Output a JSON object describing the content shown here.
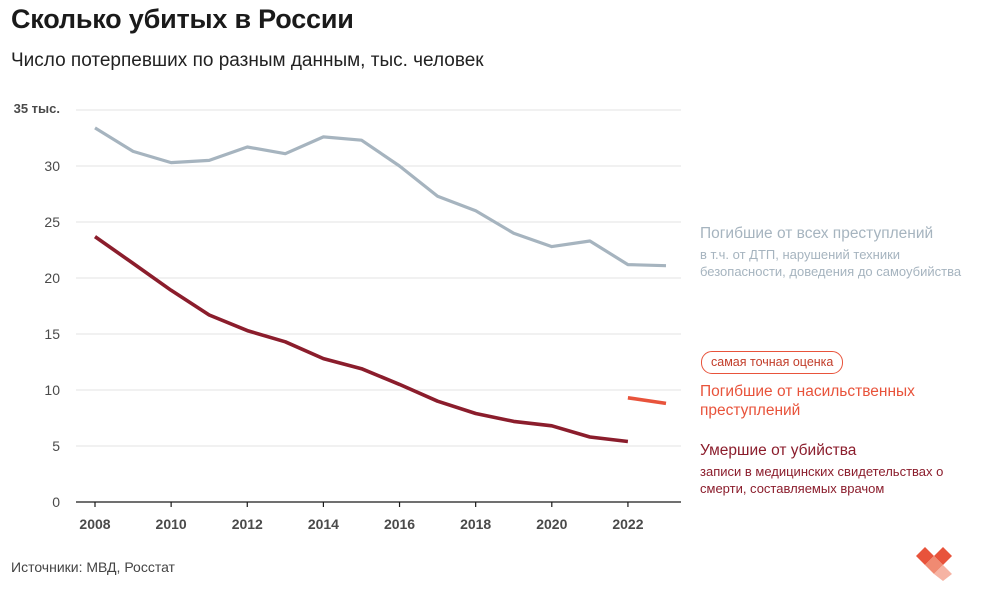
{
  "title": "Сколько убитых в России",
  "subtitle": "Число потерпевших по разным данным, тыс. человек",
  "source": "Источники: МВД, Росстат",
  "legend": {
    "all_crimes": "Погибшие от всех преступлений",
    "all_crimes_note": "в т.ч. от ДТП, нарушений техники безопасности, доведения до самоубийства",
    "badge": "самая точная оценка",
    "violent": "Погибшие от насильственных преступлений",
    "murder": "Умершие от убийства",
    "murder_note": "записи в медицинских свидетельствах о смерти, составляемых врачом"
  },
  "colors": {
    "all_crimes": "#a6b4bf",
    "violent": "#e8533b",
    "murder": "#8b1d2c",
    "grid": "#e3e3e3",
    "axis": "#1a1a1a"
  },
  "chart_data": {
    "type": "line",
    "title": "Сколько убитых в России",
    "subtitle": "Число потерпевших по разным данным, тыс. человек",
    "xlabel": "",
    "ylabel": "тыс. человек",
    "ylim": [
      0,
      35
    ],
    "xlim": [
      2008,
      2023
    ],
    "y_ticks": [
      {
        "value": 0,
        "label": "0"
      },
      {
        "value": 5,
        "label": "5"
      },
      {
        "value": 10,
        "label": "10"
      },
      {
        "value": 15,
        "label": "15"
      },
      {
        "value": 20,
        "label": "20"
      },
      {
        "value": 25,
        "label": "25"
      },
      {
        "value": 30,
        "label": "30"
      },
      {
        "value": 35,
        "label": "35 тыс."
      }
    ],
    "x_ticks": [
      "2008",
      "2010",
      "2012",
      "2014",
      "2016",
      "2018",
      "2020",
      "2022"
    ],
    "grid": true,
    "series": [
      {
        "name": "Погибшие от всех преступлений",
        "key": "all_crimes",
        "x": [
          2008,
          2009,
          2010,
          2011,
          2012,
          2013,
          2014,
          2015,
          2016,
          2017,
          2018,
          2019,
          2020,
          2021,
          2022,
          2023
        ],
        "values": [
          33.4,
          31.3,
          30.3,
          30.5,
          31.7,
          31.1,
          32.6,
          32.3,
          30.0,
          27.3,
          26.0,
          24.0,
          22.8,
          23.3,
          21.2,
          21.1
        ]
      },
      {
        "name": "Погибшие от насильственных преступлений",
        "key": "violent",
        "x": [
          2022,
          2023
        ],
        "values": [
          9.3,
          8.8
        ]
      },
      {
        "name": "Умершие от убийства",
        "key": "murder",
        "x": [
          2008,
          2009,
          2010,
          2011,
          2012,
          2013,
          2014,
          2015,
          2016,
          2017,
          2018,
          2019,
          2020,
          2021,
          2022
        ],
        "values": [
          23.7,
          21.3,
          18.9,
          16.7,
          15.3,
          14.3,
          12.8,
          11.9,
          10.5,
          9.0,
          7.9,
          7.2,
          6.8,
          5.8,
          5.4
        ]
      }
    ]
  }
}
